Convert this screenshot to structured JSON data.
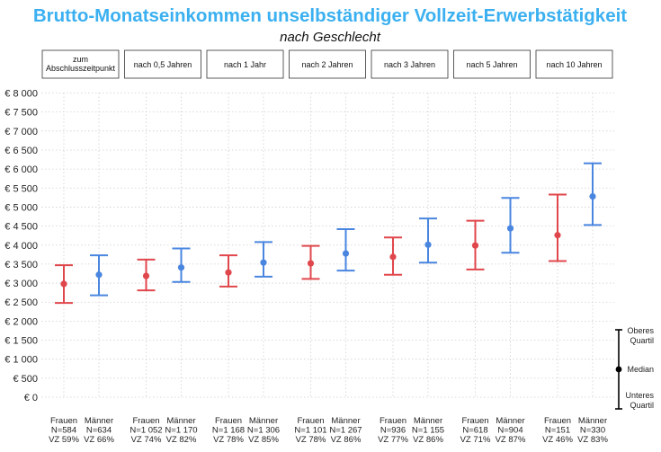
{
  "chart_data": {
    "type": "errorbar",
    "title": "Brutto-Monatseinkommen unselbständiger Vollzeit-Erwerbstätigkeit",
    "subtitle": "nach Geschlecht",
    "y_ticks": [
      "€ 0",
      "€ 500",
      "€ 1 000",
      "€ 1 500",
      "€ 2 000",
      "€ 2 500",
      "€ 3 000",
      "€ 3 500",
      "€ 4 000",
      "€ 4 500",
      "€ 5 000",
      "€ 5 500",
      "€ 6 000",
      "€ 6 500",
      "€ 7 000",
      "€ 7 500",
      "€ 8 000"
    ],
    "ylim": [
      0,
      8000
    ],
    "grid": true,
    "colors": {
      "Frauen": "#e0474c",
      "Männer": "#4a86e0",
      "title": "#3bb0f0",
      "legend": "#000000"
    },
    "facets": [
      {
        "label": [
          "zum",
          "Abschlusszeitpunkt"
        ],
        "groups": [
          {
            "series": "Frauen",
            "lines": [
              "Frauen",
              "N=584",
              "VZ 59%"
            ],
            "median": 2980,
            "lower": 2480,
            "upper": 3470
          },
          {
            "series": "Männer",
            "lines": [
              "Männer",
              "N=634",
              "VZ 66%"
            ],
            "median": 3220,
            "lower": 2680,
            "upper": 3730
          }
        ]
      },
      {
        "label": [
          "nach 0,5 Jahren"
        ],
        "groups": [
          {
            "series": "Frauen",
            "lines": [
              "Frauen",
              "N=1 052",
              "VZ 74%"
            ],
            "median": 3190,
            "lower": 2810,
            "upper": 3620
          },
          {
            "series": "Männer",
            "lines": [
              "Männer",
              "N=1 170",
              "VZ 82%"
            ],
            "median": 3410,
            "lower": 3030,
            "upper": 3910
          }
        ]
      },
      {
        "label": [
          "nach 1 Jahr"
        ],
        "groups": [
          {
            "series": "Frauen",
            "lines": [
              "Frauen",
              "N=1 168",
              "VZ 78%"
            ],
            "median": 3280,
            "lower": 2910,
            "upper": 3730
          },
          {
            "series": "Männer",
            "lines": [
              "Männer",
              "N=1 306",
              "VZ 85%"
            ],
            "median": 3540,
            "lower": 3170,
            "upper": 4080
          }
        ]
      },
      {
        "label": [
          "nach 2 Jahren"
        ],
        "groups": [
          {
            "series": "Frauen",
            "lines": [
              "Frauen",
              "N=1 101",
              "VZ 78%"
            ],
            "median": 3520,
            "lower": 3110,
            "upper": 3980
          },
          {
            "series": "Männer",
            "lines": [
              "Männer",
              "N=1 267",
              "VZ 86%"
            ],
            "median": 3780,
            "lower": 3330,
            "upper": 4420
          }
        ]
      },
      {
        "label": [
          "nach 3 Jahren"
        ],
        "groups": [
          {
            "series": "Frauen",
            "lines": [
              "Frauen",
              "N=936",
              "VZ 77%"
            ],
            "median": 3690,
            "lower": 3220,
            "upper": 4200
          },
          {
            "series": "Männer",
            "lines": [
              "Männer",
              "N=1 155",
              "VZ 86%"
            ],
            "median": 4010,
            "lower": 3540,
            "upper": 4700
          }
        ]
      },
      {
        "label": [
          "nach 5 Jahren"
        ],
        "groups": [
          {
            "series": "Frauen",
            "lines": [
              "Frauen",
              "N=618",
              "VZ 71%"
            ],
            "median": 3990,
            "lower": 3360,
            "upper": 4640
          },
          {
            "series": "Männer",
            "lines": [
              "Männer",
              "N=904",
              "VZ 87%"
            ],
            "median": 4440,
            "lower": 3800,
            "upper": 5240
          }
        ]
      },
      {
        "label": [
          "nach 10 Jahren"
        ],
        "groups": [
          {
            "series": "Frauen",
            "lines": [
              "Frauen",
              "N=151",
              "VZ 46%"
            ],
            "median": 4260,
            "lower": 3580,
            "upper": 5330
          },
          {
            "series": "Männer",
            "lines": [
              "Männer",
              "N=330",
              "VZ 83%"
            ],
            "median": 5280,
            "lower": 4530,
            "upper": 6150
          }
        ]
      }
    ],
    "legend": {
      "upper": [
        "Oberes",
        "Quartil"
      ],
      "middle": "Median",
      "lower": [
        "Unteres",
        "Quartil"
      ]
    }
  }
}
